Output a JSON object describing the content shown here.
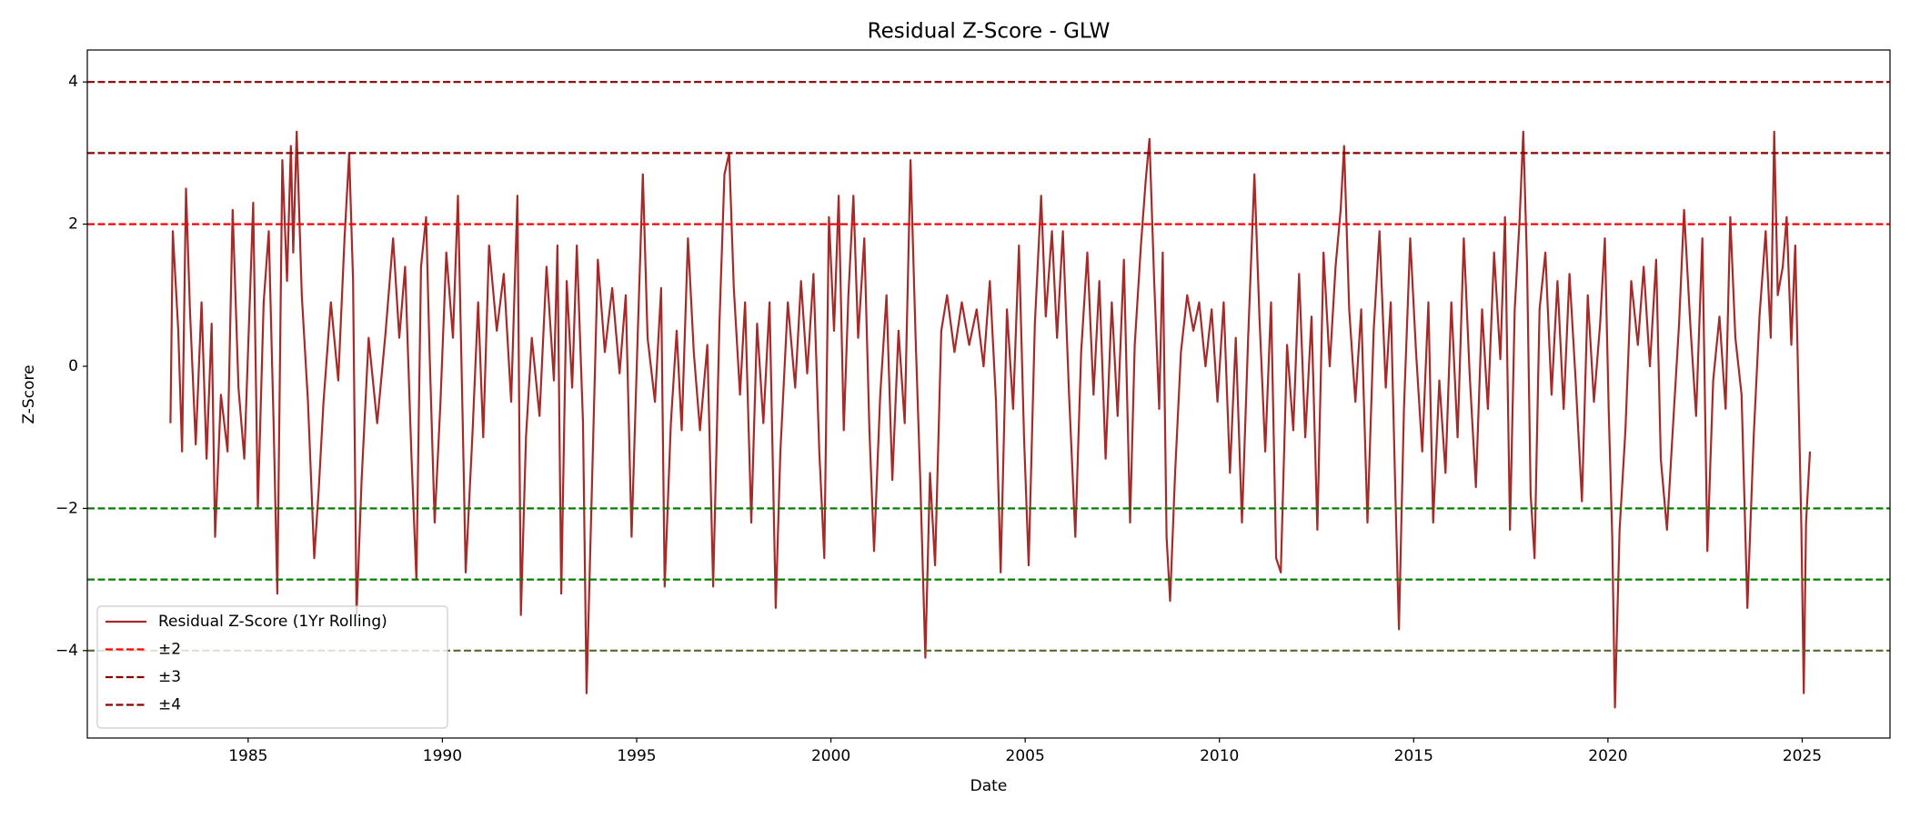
{
  "chart_data": {
    "type": "line",
    "title": "Residual Z-Score - GLW",
    "x_label": "Date",
    "y_label": "Z-Score",
    "xlim": [
      1980.86,
      2027.26
    ],
    "ylim": [
      -5.23,
      4.45
    ],
    "xticks": [
      1985,
      1990,
      1995,
      2000,
      2005,
      2010,
      2015,
      2020,
      2025
    ],
    "yticks": [
      {
        "value": -4,
        "label": "−4"
      },
      {
        "value": -2,
        "label": "−2"
      },
      0,
      2,
      4
    ],
    "legend": "lower left",
    "x": [
      1983.0,
      1983.06,
      1983.2,
      1983.3,
      1983.4,
      1983.5,
      1983.65,
      1983.8,
      1983.93,
      1984.06,
      1984.15,
      1984.3,
      1984.47,
      1984.6,
      1984.75,
      1984.9,
      1985.13,
      1985.25,
      1985.4,
      1985.53,
      1985.66,
      1985.75,
      1985.88,
      1986.0,
      1986.1,
      1986.16,
      1986.25,
      1986.38,
      1986.54,
      1986.7,
      1986.82,
      1986.94,
      1987.13,
      1987.32,
      1987.48,
      1987.6,
      1987.7,
      1987.79,
      1987.92,
      1988.1,
      1988.32,
      1988.54,
      1988.73,
      1988.89,
      1989.04,
      1989.2,
      1989.33,
      1989.45,
      1989.58,
      1989.67,
      1989.8,
      1989.95,
      1990.1,
      1990.27,
      1990.4,
      1990.52,
      1990.6,
      1990.77,
      1990.92,
      1991.05,
      1991.2,
      1991.4,
      1991.58,
      1991.77,
      1991.93,
      1992.02,
      1992.15,
      1992.3,
      1992.5,
      1992.68,
      1992.87,
      1992.96,
      1993.06,
      1993.2,
      1993.34,
      1993.46,
      1993.62,
      1993.71,
      1993.84,
      1994.0,
      1994.18,
      1994.37,
      1994.56,
      1994.72,
      1994.87,
      1995.03,
      1995.16,
      1995.28,
      1995.47,
      1995.63,
      1995.72,
      1995.88,
      1996.03,
      1996.16,
      1996.32,
      1996.47,
      1996.63,
      1996.82,
      1996.97,
      1997.13,
      1997.26,
      1997.38,
      1997.5,
      1997.66,
      1997.79,
      1997.95,
      1998.1,
      1998.26,
      1998.42,
      1998.58,
      1998.7,
      1998.89,
      1999.08,
      1999.23,
      1999.39,
      1999.55,
      1999.7,
      1999.83,
      1999.95,
      2000.08,
      2000.2,
      2000.33,
      2000.45,
      2000.58,
      2000.7,
      2000.86,
      2000.99,
      2001.11,
      2001.27,
      2001.43,
      2001.58,
      2001.74,
      2001.9,
      2002.05,
      2002.18,
      2002.3,
      2002.43,
      2002.55,
      2002.68,
      2002.84,
      2002.99,
      2003.18,
      2003.37,
      2003.56,
      2003.75,
      2003.93,
      2004.09,
      2004.25,
      2004.37,
      2004.53,
      2004.69,
      2004.84,
      2004.97,
      2005.09,
      2005.25,
      2005.41,
      2005.53,
      2005.69,
      2005.82,
      2005.97,
      2006.13,
      2006.29,
      2006.44,
      2006.6,
      2006.76,
      2006.91,
      2007.07,
      2007.23,
      2007.38,
      2007.54,
      2007.7,
      2007.82,
      2007.98,
      2008.1,
      2008.2,
      2008.32,
      2008.45,
      2008.54,
      2008.64,
      2008.73,
      2008.86,
      2009.01,
      2009.17,
      2009.33,
      2009.48,
      2009.64,
      2009.8,
      2009.95,
      2010.11,
      2010.27,
      2010.42,
      2010.58,
      2010.74,
      2010.9,
      2011.03,
      2011.18,
      2011.33,
      2011.46,
      2011.58,
      2011.74,
      2011.9,
      2012.05,
      2012.21,
      2012.37,
      2012.52,
      2012.68,
      2012.84,
      2012.99,
      2013.12,
      2013.21,
      2013.34,
      2013.5,
      2013.65,
      2013.81,
      2013.97,
      2014.12,
      2014.28,
      2014.41,
      2014.53,
      2014.62,
      2014.75,
      2014.91,
      2015.06,
      2015.22,
      2015.38,
      2015.5,
      2015.66,
      2015.82,
      2015.97,
      2016.13,
      2016.29,
      2016.44,
      2016.6,
      2016.76,
      2016.91,
      2017.07,
      2017.23,
      2017.35,
      2017.48,
      2017.6,
      2017.73,
      2017.82,
      2017.92,
      2018.01,
      2018.11,
      2018.24,
      2018.39,
      2018.55,
      2018.7,
      2018.86,
      2019.01,
      2019.17,
      2019.33,
      2019.48,
      2019.64,
      2019.8,
      2019.92,
      2020.02,
      2020.11,
      2020.18,
      2020.3,
      2020.45,
      2020.6,
      2020.77,
      2020.92,
      2021.08,
      2021.24,
      2021.36,
      2021.52,
      2021.68,
      2021.83,
      2021.96,
      2022.12,
      2022.27,
      2022.43,
      2022.56,
      2022.71,
      2022.87,
      2023.03,
      2023.15,
      2023.28,
      2023.44,
      2023.59,
      2023.75,
      2023.9,
      2024.06,
      2024.19,
      2024.28,
      2024.37,
      2024.5,
      2024.6,
      2024.72,
      2024.82,
      2024.91,
      2024.98,
      2025.04,
      2025.1,
      2025.2
    ],
    "series": [
      {
        "name": "Residual Z-Score (1Yr Rolling)",
        "color": "#a52a2a",
        "values": [
          -0.8,
          1.9,
          0.5,
          -1.2,
          2.5,
          0.8,
          -1.1,
          0.9,
          -1.3,
          0.6,
          -2.4,
          -0.4,
          -1.2,
          2.2,
          -0.3,
          -1.3,
          2.3,
          -2.0,
          0.9,
          1.9,
          -0.9,
          -3.2,
          2.9,
          1.2,
          3.1,
          1.6,
          3.3,
          1.0,
          -0.5,
          -2.7,
          -1.7,
          -0.5,
          0.9,
          -0.2,
          1.8,
          3.0,
          1.2,
          -3.5,
          -1.6,
          0.4,
          -0.8,
          0.5,
          1.8,
          0.4,
          1.4,
          -1.2,
          -3.0,
          1.4,
          2.1,
          0.2,
          -2.2,
          -0.5,
          1.6,
          0.4,
          2.4,
          -0.7,
          -2.9,
          -1.0,
          0.9,
          -1.0,
          1.7,
          0.5,
          1.3,
          -0.5,
          2.4,
          -3.5,
          -1.0,
          0.4,
          -0.7,
          1.4,
          -0.2,
          1.7,
          -3.2,
          1.2,
          -0.3,
          1.7,
          -0.8,
          -4.6,
          -1.9,
          1.5,
          0.2,
          1.1,
          -0.1,
          1.0,
          -2.4,
          0.5,
          2.7,
          0.4,
          -0.5,
          1.1,
          -3.1,
          -0.8,
          0.5,
          -0.9,
          1.8,
          0.2,
          -0.9,
          0.3,
          -3.1,
          0.6,
          2.7,
          3.0,
          1.1,
          -0.4,
          0.9,
          -2.2,
          0.6,
          -0.8,
          0.9,
          -3.4,
          -1.2,
          0.9,
          -0.3,
          1.2,
          -0.1,
          1.3,
          -1.2,
          -2.7,
          2.1,
          0.5,
          2.4,
          -0.9,
          1.0,
          2.4,
          0.4,
          1.8,
          -0.9,
          -2.6,
          -0.4,
          1.0,
          -1.6,
          0.5,
          -0.8,
          2.9,
          0.4,
          -1.6,
          -4.1,
          -1.5,
          -2.8,
          0.5,
          1.0,
          0.2,
          0.9,
          0.3,
          0.8,
          0.0,
          1.2,
          -0.5,
          -2.9,
          0.8,
          -0.6,
          1.7,
          -1.0,
          -2.8,
          0.6,
          2.4,
          0.7,
          1.9,
          0.4,
          1.9,
          -0.4,
          -2.4,
          0.2,
          1.6,
          -0.4,
          1.2,
          -1.3,
          0.9,
          -0.7,
          1.5,
          -2.2,
          0.3,
          1.7,
          2.6,
          3.2,
          1.2,
          -0.6,
          1.6,
          -2.4,
          -3.3,
          -1.5,
          0.2,
          1.0,
          0.5,
          0.9,
          0.0,
          0.8,
          -0.5,
          0.9,
          -1.5,
          0.4,
          -2.2,
          0.4,
          2.7,
          0.7,
          -1.2,
          0.9,
          -2.7,
          -2.9,
          0.3,
          -0.9,
          1.3,
          -1.0,
          0.7,
          -2.3,
          1.6,
          0.0,
          1.4,
          2.2,
          3.1,
          0.8,
          -0.5,
          0.8,
          -2.2,
          0.5,
          1.9,
          -0.3,
          0.9,
          -1.8,
          -3.7,
          -0.6,
          1.8,
          0.2,
          -1.2,
          0.9,
          -2.2,
          -0.2,
          -1.5,
          0.9,
          -1.0,
          1.8,
          -0.1,
          -1.7,
          0.8,
          -0.6,
          1.6,
          0.1,
          2.1,
          -2.3,
          0.8,
          2.1,
          3.3,
          1.4,
          -1.8,
          -2.7,
          0.8,
          1.6,
          -0.4,
          1.2,
          -0.6,
          1.3,
          -0.2,
          -1.9,
          1.0,
          -0.5,
          0.6,
          1.8,
          -0.6,
          -2.4,
          -4.8,
          -2.3,
          -0.9,
          1.2,
          0.3,
          1.4,
          0.0,
          1.5,
          -1.3,
          -2.3,
          -0.8,
          0.6,
          2.2,
          0.6,
          -0.7,
          1.8,
          -2.6,
          -0.2,
          0.7,
          -0.6,
          2.1,
          0.4,
          -0.4,
          -3.4,
          -1.0,
          0.7,
          1.9,
          0.4,
          3.3,
          1.0,
          1.4,
          2.1,
          0.3,
          1.7,
          -0.5,
          -2.3,
          -4.6,
          -2.2,
          -1.2
        ]
      }
    ],
    "reference_lines": [
      {
        "name": "±2",
        "values": [
          2,
          -2
        ],
        "colors": [
          "red",
          "green"
        ]
      },
      {
        "name": "±3",
        "values": [
          3,
          -3
        ],
        "colors": [
          "darkred",
          "green"
        ]
      },
      {
        "name": "±4",
        "values": [
          4,
          -4
        ],
        "colors": [
          "darkred",
          "darkolivegreen"
        ]
      }
    ]
  }
}
